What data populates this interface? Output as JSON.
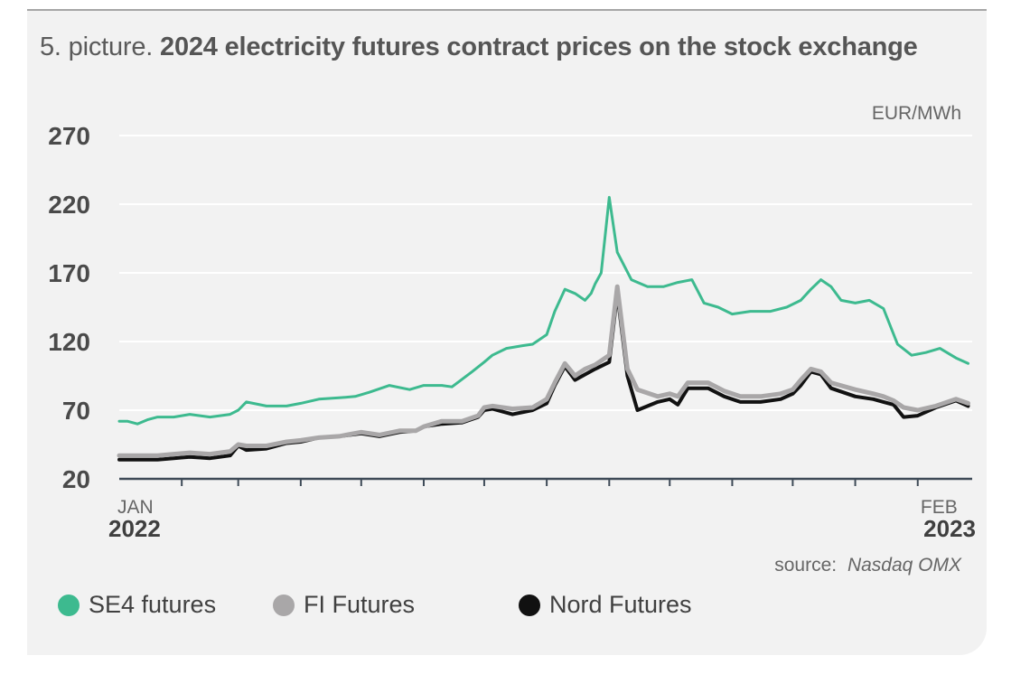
{
  "title": {
    "prefix": "5. picture.",
    "main": "2024 electricity futures contract prices on the stock exchange"
  },
  "source": {
    "label": "source:",
    "name": "Nasdaq OMX"
  },
  "colors": {
    "se4": "#3dba8f",
    "fi": "#a9a7a8",
    "nord": "#111111"
  },
  "chart_data": {
    "type": "line",
    "unit_label": "EUR/MWh",
    "ylim": [
      20,
      270
    ],
    "yticks": [
      20,
      70,
      120,
      170,
      220,
      270
    ],
    "xlim": [
      "2022-01-01",
      "2023-02-28"
    ],
    "x_labels": [
      {
        "month": "JAN",
        "year": "2022",
        "date": "2022-01-01"
      },
      {
        "month": "FEB",
        "year": "2023",
        "date": "2023-02-01"
      }
    ],
    "x_ticks": [
      "2022-02-01",
      "2022-03-01",
      "2022-04-01",
      "2022-05-01",
      "2022-06-01",
      "2022-07-01",
      "2022-08-01",
      "2022-09-01",
      "2022-10-01",
      "2022-11-01",
      "2022-12-01",
      "2023-01-01",
      "2023-02-01"
    ],
    "grid": true,
    "legend_position": "bottom",
    "series": [
      {
        "name": "SE4 futures",
        "color_key": "se4",
        "x": [
          "2022-01-01",
          "2022-01-05",
          "2022-01-10",
          "2022-01-15",
          "2022-01-20",
          "2022-01-28",
          "2022-02-05",
          "2022-02-15",
          "2022-02-25",
          "2022-03-01",
          "2022-03-05",
          "2022-03-15",
          "2022-03-25",
          "2022-04-01",
          "2022-04-10",
          "2022-04-20",
          "2022-04-28",
          "2022-05-05",
          "2022-05-15",
          "2022-05-25",
          "2022-06-01",
          "2022-06-10",
          "2022-06-15",
          "2022-06-25",
          "2022-07-01",
          "2022-07-05",
          "2022-07-12",
          "2022-07-20",
          "2022-07-25",
          "2022-08-01",
          "2022-08-05",
          "2022-08-10",
          "2022-08-15",
          "2022-08-20",
          "2022-08-23",
          "2022-08-25",
          "2022-08-28",
          "2022-09-01",
          "2022-09-05",
          "2022-09-12",
          "2022-09-20",
          "2022-09-28",
          "2022-10-05",
          "2022-10-12",
          "2022-10-18",
          "2022-10-25",
          "2022-11-01",
          "2022-11-10",
          "2022-11-20",
          "2022-11-28",
          "2022-12-05",
          "2022-12-10",
          "2022-12-15",
          "2022-12-20",
          "2022-12-25",
          "2023-01-01",
          "2023-01-08",
          "2023-01-15",
          "2023-01-22",
          "2023-01-29",
          "2023-02-05",
          "2023-02-12",
          "2023-02-20",
          "2023-02-26"
        ],
        "values": [
          62,
          62,
          60,
          63,
          65,
          65,
          67,
          65,
          67,
          70,
          76,
          73,
          73,
          75,
          78,
          79,
          80,
          83,
          88,
          85,
          88,
          88,
          87,
          98,
          105,
          110,
          115,
          117,
          118,
          125,
          142,
          158,
          155,
          150,
          155,
          162,
          170,
          225,
          185,
          165,
          160,
          160,
          163,
          165,
          148,
          145,
          140,
          142,
          142,
          145,
          150,
          158,
          165,
          160,
          150,
          148,
          150,
          144,
          118,
          110,
          112,
          115,
          108,
          104
        ]
      },
      {
        "name": "FI Futures",
        "color_key": "fi",
        "x": [
          "2022-01-01",
          "2022-01-10",
          "2022-01-20",
          "2022-01-28",
          "2022-02-05",
          "2022-02-15",
          "2022-02-25",
          "2022-03-01",
          "2022-03-05",
          "2022-03-15",
          "2022-03-25",
          "2022-04-01",
          "2022-04-10",
          "2022-04-20",
          "2022-05-01",
          "2022-05-10",
          "2022-05-20",
          "2022-05-28",
          "2022-06-01",
          "2022-06-10",
          "2022-06-20",
          "2022-06-28",
          "2022-07-01",
          "2022-07-05",
          "2022-07-15",
          "2022-07-25",
          "2022-08-01",
          "2022-08-05",
          "2022-08-10",
          "2022-08-15",
          "2022-08-20",
          "2022-08-25",
          "2022-09-01",
          "2022-09-05",
          "2022-09-10",
          "2022-09-15",
          "2022-09-25",
          "2022-10-01",
          "2022-10-05",
          "2022-10-10",
          "2022-10-20",
          "2022-10-28",
          "2022-11-05",
          "2022-11-15",
          "2022-11-25",
          "2022-12-01",
          "2022-12-05",
          "2022-12-10",
          "2022-12-15",
          "2022-12-20",
          "2023-01-01",
          "2023-01-10",
          "2023-01-15",
          "2023-01-20",
          "2023-01-25",
          "2023-02-01",
          "2023-02-10",
          "2023-02-20",
          "2023-02-26"
        ],
        "values": [
          37,
          37,
          37,
          38,
          39,
          38,
          40,
          45,
          44,
          44,
          47,
          48,
          50,
          51,
          54,
          52,
          55,
          55,
          58,
          62,
          62,
          66,
          72,
          73,
          71,
          72,
          78,
          90,
          104,
          95,
          100,
          103,
          110,
          160,
          100,
          85,
          80,
          82,
          80,
          90,
          90,
          84,
          80,
          80,
          82,
          85,
          92,
          100,
          98,
          90,
          85,
          82,
          80,
          77,
          72,
          70,
          73,
          78,
          75
        ]
      },
      {
        "name": "Nord Futures",
        "color_key": "nord",
        "x": [
          "2022-01-01",
          "2022-01-10",
          "2022-01-20",
          "2022-01-28",
          "2022-02-05",
          "2022-02-15",
          "2022-02-25",
          "2022-03-01",
          "2022-03-05",
          "2022-03-15",
          "2022-03-25",
          "2022-04-01",
          "2022-04-10",
          "2022-04-20",
          "2022-05-01",
          "2022-05-10",
          "2022-05-20",
          "2022-05-28",
          "2022-06-01",
          "2022-06-10",
          "2022-06-20",
          "2022-06-28",
          "2022-07-01",
          "2022-07-05",
          "2022-07-15",
          "2022-07-25",
          "2022-08-01",
          "2022-08-05",
          "2022-08-10",
          "2022-08-15",
          "2022-08-20",
          "2022-08-25",
          "2022-09-01",
          "2022-09-05",
          "2022-09-10",
          "2022-09-15",
          "2022-09-25",
          "2022-10-01",
          "2022-10-05",
          "2022-10-10",
          "2022-10-20",
          "2022-10-28",
          "2022-11-05",
          "2022-11-15",
          "2022-11-25",
          "2022-12-01",
          "2022-12-05",
          "2022-12-10",
          "2022-12-15",
          "2022-12-20",
          "2023-01-01",
          "2023-01-10",
          "2023-01-15",
          "2023-01-20",
          "2023-01-25",
          "2023-02-01",
          "2023-02-10",
          "2023-02-20",
          "2023-02-26"
        ],
        "values": [
          34,
          34,
          34,
          35,
          36,
          35,
          37,
          44,
          41,
          42,
          46,
          47,
          50,
          51,
          53,
          51,
          54,
          55,
          58,
          60,
          61,
          65,
          70,
          71,
          67,
          70,
          75,
          88,
          102,
          92,
          96,
          100,
          105,
          155,
          95,
          70,
          76,
          78,
          74,
          86,
          86,
          80,
          76,
          76,
          78,
          82,
          88,
          98,
          96,
          86,
          80,
          78,
          76,
          74,
          65,
          66,
          72,
          77,
          73
        ]
      }
    ]
  }
}
